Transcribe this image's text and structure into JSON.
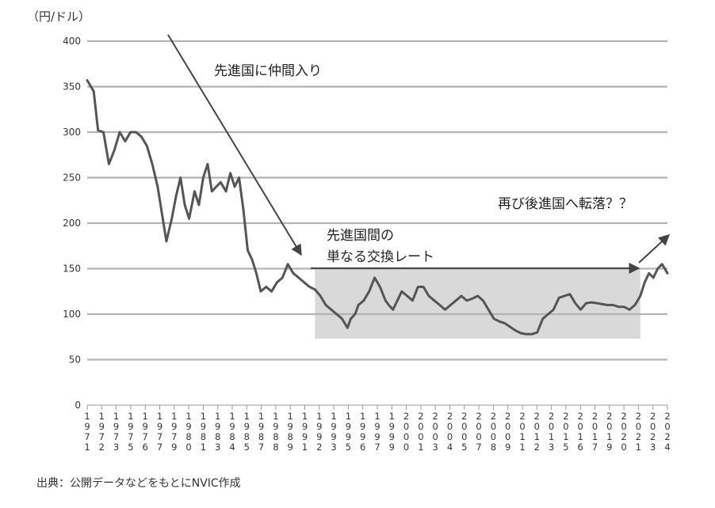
{
  "chart_data": {
    "type": "line",
    "unit_label": "（円/ドル）",
    "source_note": "出典：公開データなどをもとにNVIC作成",
    "ylim": [
      0,
      400
    ],
    "yticks": [
      0,
      50,
      100,
      150,
      200,
      250,
      300,
      350,
      400
    ],
    "grid": true,
    "series_color": "#555555",
    "band_color": "#d9d9d9",
    "arrow_color": "#444444",
    "xtick_labels": [
      "1971",
      "1972",
      "1973",
      "1975",
      "1976",
      "1977",
      "1979",
      "1980",
      "1981",
      "1983",
      "1984",
      "1985",
      "1987",
      "1988",
      "1989",
      "1991",
      "1992",
      "1993",
      "1995",
      "1996",
      "1997",
      "1999",
      "2000",
      "2001",
      "2003",
      "2004",
      "2005",
      "2007",
      "2008",
      "2009",
      "2011",
      "2012",
      "2013",
      "2015",
      "2016",
      "2017",
      "2019",
      "2020",
      "2021",
      "2023",
      "2024"
    ],
    "x": [
      1971.0,
      1971.6,
      1972.0,
      1972.5,
      1973.0,
      1973.5,
      1974.0,
      1974.5,
      1975.0,
      1975.5,
      1976.0,
      1976.5,
      1977.0,
      1977.5,
      1977.9,
      1978.3,
      1978.8,
      1979.2,
      1979.6,
      1980.0,
      1980.4,
      1980.9,
      1981.3,
      1981.7,
      1982.1,
      1982.5,
      1982.9,
      1983.3,
      1983.8,
      1984.2,
      1984.6,
      1985.0,
      1985.4,
      1985.8,
      1986.2,
      1986.6,
      1987.0,
      1987.5,
      1988.0,
      1988.5,
      1989.0,
      1989.5,
      1990.0,
      1990.5,
      1991.0,
      1991.5,
      1992.0,
      1992.5,
      1993.0,
      1993.5,
      1994.0,
      1994.5,
      1995.0,
      1995.3,
      1995.7,
      1996.0,
      1996.5,
      1997.0,
      1997.5,
      1998.0,
      1998.5,
      1998.8,
      1999.2,
      1999.6,
      2000.0,
      2000.5,
      2001.0,
      2001.5,
      2002.0,
      2002.5,
      2003.0,
      2003.5,
      2004.0,
      2004.5,
      2005.0,
      2005.5,
      2006.0,
      2006.5,
      2007.0,
      2007.5,
      2008.0,
      2008.5,
      2009.0,
      2009.5,
      2010.0,
      2010.5,
      2011.0,
      2011.5,
      2012.0,
      2012.5,
      2013.0,
      2013.5,
      2014.0,
      2014.5,
      2015.0,
      2015.5,
      2016.0,
      2016.5,
      2017.0,
      2017.5,
      2018.0,
      2018.5,
      2019.0,
      2019.5,
      2020.0,
      2020.5,
      2021.0,
      2021.5,
      2022.0,
      2022.4,
      2022.8,
      2023.2,
      2023.6,
      2024.0,
      2024.5
    ],
    "values": [
      357,
      345,
      302,
      300,
      265,
      280,
      300,
      290,
      300,
      300,
      295,
      285,
      265,
      240,
      210,
      180,
      205,
      230,
      250,
      220,
      205,
      235,
      220,
      250,
      265,
      235,
      240,
      245,
      235,
      255,
      240,
      250,
      215,
      170,
      160,
      145,
      125,
      130,
      125,
      135,
      140,
      155,
      145,
      140,
      135,
      130,
      127,
      120,
      110,
      105,
      100,
      95,
      85,
      95,
      100,
      110,
      115,
      125,
      140,
      130,
      115,
      110,
      105,
      115,
      125,
      120,
      115,
      130,
      130,
      120,
      115,
      110,
      105,
      110,
      115,
      120,
      115,
      117,
      120,
      115,
      105,
      95,
      92,
      90,
      86,
      82,
      79,
      78,
      78,
      80,
      95,
      100,
      105,
      118,
      120,
      122,
      112,
      105,
      112,
      113,
      112,
      111,
      110,
      110,
      108,
      108,
      105,
      110,
      120,
      135,
      145,
      140,
      150,
      155,
      145
    ],
    "band": {
      "x_start": 1992.0,
      "x_end": 2022.0,
      "y_low": 73,
      "y_high": 150
    },
    "annotations": {
      "a1": "先進国に仲間入り",
      "a2_line1": "先進国間の",
      "a2_line2": "単なる交換レート",
      "a3": "再び後進国へ転落？？"
    }
  }
}
